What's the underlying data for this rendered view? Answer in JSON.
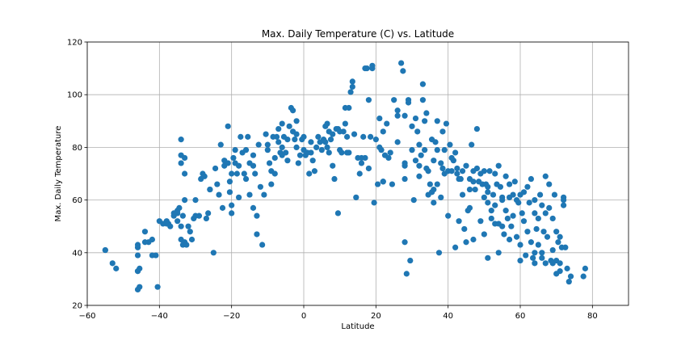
{
  "chart_data": {
    "type": "scatter",
    "title": "Max. Daily Temperature (C) vs. Latitude",
    "xlabel": "Latitude",
    "ylabel": "Max. Daily Temperature",
    "xlim": [
      -60,
      90
    ],
    "ylim": [
      20,
      120
    ],
    "xticks": [
      -60,
      -40,
      -20,
      0,
      20,
      40,
      60,
      80
    ],
    "yticks": [
      20,
      40,
      60,
      80,
      100,
      120
    ],
    "grid": true,
    "marker_color": "#1f77b4",
    "points": [
      [
        -55,
        41
      ],
      [
        -53,
        36
      ],
      [
        -52,
        34
      ],
      [
        -46,
        43
      ],
      [
        -46,
        42
      ],
      [
        -46,
        39
      ],
      [
        -46,
        33
      ],
      [
        -45.5,
        27
      ],
      [
        -46,
        26
      ],
      [
        -45.5,
        34
      ],
      [
        -44,
        48
      ],
      [
        -43,
        44
      ],
      [
        -42,
        45
      ],
      [
        -42,
        39
      ],
      [
        -41,
        39
      ],
      [
        -40.5,
        27
      ],
      [
        -40,
        52
      ],
      [
        -38,
        51
      ],
      [
        -38,
        52
      ],
      [
        -37.5,
        51
      ],
      [
        -37,
        50
      ],
      [
        -36,
        54
      ],
      [
        -35,
        56
      ],
      [
        -35,
        55
      ],
      [
        -35,
        52
      ],
      [
        -34.5,
        57
      ],
      [
        -34,
        83
      ],
      [
        -34,
        77
      ],
      [
        -34,
        74
      ],
      [
        -34,
        50
      ],
      [
        -34,
        45
      ],
      [
        -33.5,
        54
      ],
      [
        -33.5,
        43
      ],
      [
        -33,
        76
      ],
      [
        -33,
        70
      ],
      [
        -33,
        60
      ],
      [
        -33,
        44
      ],
      [
        -32.5,
        43
      ],
      [
        -32,
        50
      ],
      [
        -31.5,
        48
      ],
      [
        -31,
        45
      ],
      [
        -30.5,
        53
      ],
      [
        -30,
        60
      ],
      [
        -29,
        54
      ],
      [
        -28.5,
        68
      ],
      [
        -28,
        70
      ],
      [
        -27.5,
        69
      ],
      [
        -27,
        53
      ],
      [
        -26.5,
        55
      ],
      [
        -26,
        64
      ],
      [
        -25,
        40
      ],
      [
        -24.5,
        72
      ],
      [
        -24,
        66
      ],
      [
        -23.5,
        62
      ],
      [
        -23,
        81
      ],
      [
        -22.5,
        57
      ],
      [
        -22,
        73
      ],
      [
        -21,
        74
      ],
      [
        -21,
        88
      ],
      [
        -20.5,
        67
      ],
      [
        -20.5,
        63
      ],
      [
        -20,
        70
      ],
      [
        -20,
        58
      ],
      [
        -20,
        55
      ],
      [
        -19.5,
        76
      ],
      [
        -19,
        79
      ],
      [
        -19,
        74
      ],
      [
        -18.5,
        70
      ],
      [
        -18,
        73
      ],
      [
        -17.5,
        84
      ],
      [
        -17,
        78
      ],
      [
        -16.5,
        70
      ],
      [
        -16,
        79
      ],
      [
        -16,
        68
      ],
      [
        -15.5,
        84
      ],
      [
        -15,
        74
      ],
      [
        -15,
        62
      ],
      [
        -14,
        77
      ],
      [
        -14,
        73
      ],
      [
        -13.5,
        70
      ],
      [
        -13,
        54
      ],
      [
        -13,
        47
      ],
      [
        -12.5,
        81
      ],
      [
        -12,
        65
      ],
      [
        -11.5,
        43
      ],
      [
        -11,
        62
      ],
      [
        -10.5,
        85
      ],
      [
        -10,
        79
      ],
      [
        -9.5,
        74
      ],
      [
        -9,
        71
      ],
      [
        -9,
        66
      ],
      [
        -8.5,
        84
      ],
      [
        -8,
        76
      ],
      [
        -8,
        70
      ],
      [
        -7.5,
        84
      ],
      [
        -7,
        82
      ],
      [
        -7,
        87
      ],
      [
        -6.5,
        78
      ],
      [
        -6,
        89
      ],
      [
        -6,
        80
      ],
      [
        -5.5,
        84
      ],
      [
        -5,
        78
      ],
      [
        -4.5,
        83
      ],
      [
        -4.5,
        75
      ],
      [
        -4,
        88
      ],
      [
        -3.5,
        95
      ],
      [
        -3,
        94
      ],
      [
        -3,
        86
      ],
      [
        -2.5,
        83
      ],
      [
        -2,
        90
      ],
      [
        -2,
        80
      ],
      [
        -1.5,
        74
      ],
      [
        -1,
        77
      ],
      [
        -0.5,
        83
      ],
      [
        0,
        79
      ],
      [
        0,
        84
      ],
      [
        0.5,
        77
      ],
      [
        1,
        78
      ],
      [
        1.5,
        70
      ],
      [
        2,
        82
      ],
      [
        2.5,
        75
      ],
      [
        3,
        71
      ],
      [
        3.5,
        80
      ],
      [
        4,
        84
      ],
      [
        4.5,
        82
      ],
      [
        5,
        79
      ],
      [
        5.5,
        83
      ],
      [
        6,
        82
      ],
      [
        6.5,
        80
      ],
      [
        6.5,
        89
      ],
      [
        7,
        78
      ],
      [
        7,
        86
      ],
      [
        7.5,
        83
      ],
      [
        8,
        85
      ],
      [
        8,
        73
      ],
      [
        8.5,
        68
      ],
      [
        9,
        87
      ],
      [
        9.5,
        87
      ],
      [
        9.5,
        55
      ],
      [
        10,
        86
      ],
      [
        10,
        79
      ],
      [
        10.5,
        78
      ],
      [
        11,
        86
      ],
      [
        11.5,
        95
      ],
      [
        11.5,
        89
      ],
      [
        12,
        84
      ],
      [
        12.5,
        78
      ],
      [
        12.5,
        95
      ],
      [
        13,
        101
      ],
      [
        13.5,
        105
      ],
      [
        13.5,
        103
      ],
      [
        14,
        85
      ],
      [
        14.5,
        61
      ],
      [
        15,
        76
      ],
      [
        15.5,
        70
      ],
      [
        16,
        74
      ],
      [
        16.5,
        84
      ],
      [
        17,
        76
      ],
      [
        17,
        110
      ],
      [
        17.5,
        110
      ],
      [
        18,
        98
      ],
      [
        18,
        72
      ],
      [
        18.5,
        84
      ],
      [
        19,
        111
      ],
      [
        19,
        110
      ],
      [
        19.5,
        59
      ],
      [
        20,
        83
      ],
      [
        20.5,
        66
      ],
      [
        21,
        91
      ],
      [
        21,
        80
      ],
      [
        21.5,
        79
      ],
      [
        22,
        86
      ],
      [
        22,
        67
      ],
      [
        22.5,
        77
      ],
      [
        23,
        89
      ],
      [
        23.5,
        76
      ],
      [
        24,
        78
      ],
      [
        24.5,
        66
      ],
      [
        25,
        98
      ],
      [
        26,
        94
      ],
      [
        26,
        82
      ],
      [
        27,
        112
      ],
      [
        27.5,
        109
      ],
      [
        28,
        92
      ],
      [
        28,
        74
      ],
      [
        28,
        73
      ],
      [
        28,
        68
      ],
      [
        28,
        44
      ],
      [
        28.5,
        32
      ],
      [
        29,
        97
      ],
      [
        29,
        98
      ],
      [
        29.5,
        37
      ],
      [
        30,
        88
      ],
      [
        30,
        79
      ],
      [
        30.5,
        60
      ],
      [
        31,
        91
      ],
      [
        31.5,
        86
      ],
      [
        32,
        81
      ],
      [
        32,
        73
      ],
      [
        32,
        69
      ],
      [
        32.5,
        77
      ],
      [
        33,
        104
      ],
      [
        33,
        98
      ],
      [
        33.5,
        90
      ],
      [
        33.5,
        79
      ],
      [
        34,
        93
      ],
      [
        34,
        72
      ],
      [
        34.5,
        71
      ],
      [
        34.5,
        62
      ],
      [
        35,
        66
      ],
      [
        35.5,
        83
      ],
      [
        35.5,
        63
      ],
      [
        36,
        75
      ],
      [
        36,
        64
      ],
      [
        36.5,
        82
      ],
      [
        37,
        90
      ],
      [
        37,
        79
      ],
      [
        37,
        66
      ],
      [
        37.5,
        40
      ],
      [
        38,
        74
      ],
      [
        38,
        61
      ],
      [
        38.5,
        86
      ],
      [
        38.5,
        72
      ],
      [
        39,
        79
      ],
      [
        39,
        70
      ],
      [
        39.5,
        89
      ],
      [
        40,
        71
      ],
      [
        40,
        54
      ],
      [
        40.5,
        81
      ],
      [
        41,
        76
      ],
      [
        41,
        71
      ],
      [
        41.5,
        75
      ],
      [
        42,
        78
      ],
      [
        42.5,
        72
      ],
      [
        42.5,
        70
      ],
      [
        43,
        68
      ],
      [
        43,
        52
      ],
      [
        43.5,
        68
      ],
      [
        44,
        71
      ],
      [
        44,
        62
      ],
      [
        44.5,
        49
      ],
      [
        45,
        73
      ],
      [
        45,
        44
      ],
      [
        45.5,
        56
      ],
      [
        46,
        68
      ],
      [
        46,
        64
      ],
      [
        46,
        57
      ],
      [
        46.5,
        81
      ],
      [
        47,
        71
      ],
      [
        47,
        67
      ],
      [
        47.5,
        64
      ],
      [
        48,
        87
      ],
      [
        48,
        72
      ],
      [
        48.5,
        67
      ],
      [
        49,
        70
      ],
      [
        49,
        52
      ],
      [
        49.5,
        66
      ],
      [
        50,
        71
      ],
      [
        50,
        61
      ],
      [
        50,
        47
      ],
      [
        50.5,
        66
      ],
      [
        51,
        65
      ],
      [
        51,
        63
      ],
      [
        51,
        59
      ],
      [
        51,
        38
      ],
      [
        51.5,
        71
      ],
      [
        52,
        56
      ],
      [
        52,
        53
      ],
      [
        52.5,
        62
      ],
      [
        53,
        70
      ],
      [
        53,
        58
      ],
      [
        53,
        51
      ],
      [
        53.5,
        66
      ],
      [
        54,
        73
      ],
      [
        54,
        51
      ],
      [
        54.5,
        65
      ],
      [
        55,
        61
      ],
      [
        55,
        60
      ],
      [
        55,
        50
      ],
      [
        55.5,
        47
      ],
      [
        56,
        69
      ],
      [
        56,
        56
      ],
      [
        56.5,
        53
      ],
      [
        57,
        66
      ],
      [
        57,
        61
      ],
      [
        57.5,
        50
      ],
      [
        58,
        62
      ],
      [
        58,
        54
      ],
      [
        58.5,
        67
      ],
      [
        59,
        60
      ],
      [
        59,
        46
      ],
      [
        59.5,
        59
      ],
      [
        60,
        62
      ],
      [
        60,
        43
      ],
      [
        60.5,
        55
      ],
      [
        61,
        63
      ],
      [
        61,
        52
      ],
      [
        61.5,
        39
      ],
      [
        62,
        65
      ],
      [
        62,
        48
      ],
      [
        62.5,
        59
      ],
      [
        63,
        68
      ],
      [
        63,
        44
      ],
      [
        63.5,
        38
      ],
      [
        64,
        60
      ],
      [
        64,
        55
      ],
      [
        64,
        36
      ],
      [
        64.5,
        49
      ],
      [
        65,
        53
      ],
      [
        65,
        43
      ],
      [
        65.5,
        62
      ],
      [
        66,
        58
      ],
      [
        66,
        40
      ],
      [
        66.5,
        48
      ],
      [
        67,
        69
      ],
      [
        67,
        55
      ],
      [
        67,
        36
      ],
      [
        67.5,
        46
      ],
      [
        68,
        66
      ],
      [
        68,
        57
      ],
      [
        68.5,
        37
      ],
      [
        69,
        53
      ],
      [
        69,
        41
      ],
      [
        69.5,
        62
      ],
      [
        70,
        48
      ],
      [
        70,
        37
      ],
      [
        70.5,
        44
      ],
      [
        71,
        46
      ],
      [
        71,
        36
      ],
      [
        71.5,
        42
      ],
      [
        72,
        61
      ],
      [
        72,
        60
      ],
      [
        72,
        58
      ],
      [
        72.5,
        42
      ],
      [
        73,
        34
      ],
      [
        73.5,
        29
      ],
      [
        74,
        31
      ],
      [
        77.5,
        31
      ],
      [
        78,
        34
      ],
      [
        70,
        32
      ],
      [
        71,
        33
      ],
      [
        69,
        36
      ],
      [
        66,
        38
      ],
      [
        64,
        40
      ],
      [
        60,
        37
      ],
      [
        57,
        45
      ],
      [
        54,
        40
      ],
      [
        47,
        45
      ],
      [
        42,
        42
      ],
      [
        36,
        59
      ],
      [
        31,
        75
      ],
      [
        26,
        92
      ],
      [
        22,
        67
      ],
      [
        16,
        76
      ],
      [
        12,
        78
      ],
      [
        6,
        88
      ],
      [
        2,
        78
      ],
      [
        -2,
        85
      ],
      [
        -6,
        77
      ],
      [
        -10,
        81
      ],
      [
        -14,
        57
      ],
      [
        -18,
        61
      ],
      [
        -22,
        75
      ],
      [
        -26,
        64
      ],
      [
        -30,
        54
      ],
      [
        -36,
        55
      ],
      [
        -39,
        51
      ],
      [
        -44,
        44
      ],
      [
        -46,
        33
      ],
      [
        -55,
        41
      ]
    ]
  }
}
